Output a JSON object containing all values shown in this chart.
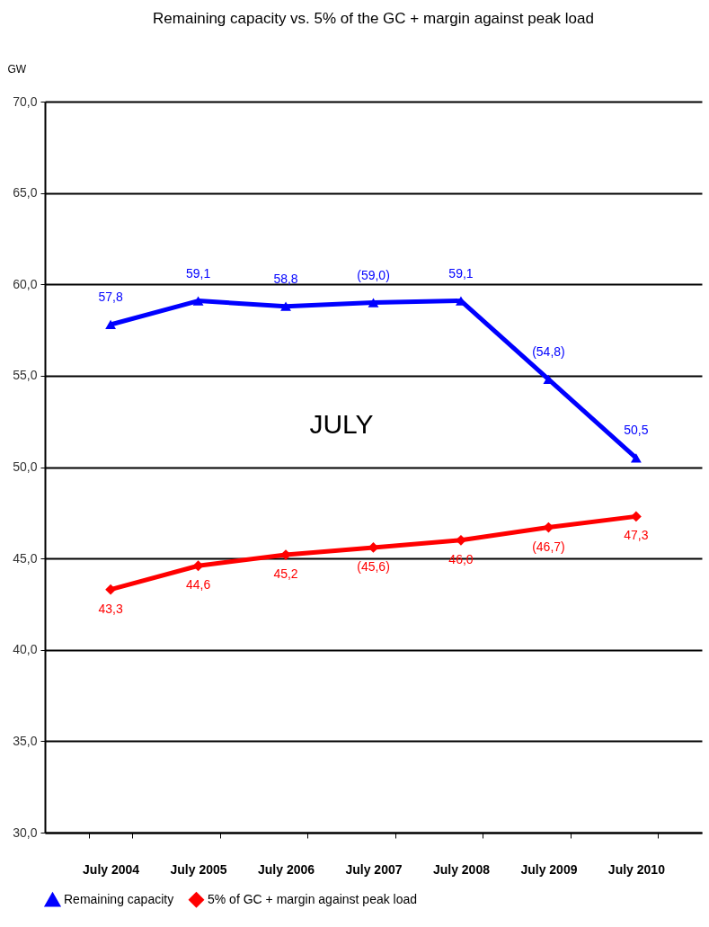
{
  "chart_data": {
    "type": "line",
    "title": "Remaining capacity vs. 5% of the GC + margin against peak load",
    "ylabel": "GW",
    "categories": [
      "July 2004",
      "July 2005",
      "July 2006",
      "July 2007",
      "July 2008",
      "July 2009",
      "July 2010"
    ],
    "series": [
      {
        "name": "Remaining capacity",
        "color": "#0000ff",
        "marker": "triangle",
        "values": [
          57.8,
          59.1,
          58.8,
          59.0,
          59.1,
          54.8,
          50.5
        ],
        "value_labels": [
          "57,8",
          "59,1",
          "58,8",
          "(59,0)",
          "59,1",
          "(54,8)",
          "50,5"
        ]
      },
      {
        "name": "5% of GC + margin against peak load",
        "color": "#ff0000",
        "marker": "diamond",
        "values": [
          43.3,
          44.6,
          45.2,
          45.6,
          46.0,
          46.7,
          47.3
        ],
        "value_labels": [
          "43,3",
          "44,6",
          "45,2",
          "(45,6)",
          "46,0",
          "(46,7)",
          "47,3"
        ]
      }
    ],
    "ylim": [
      30,
      70
    ],
    "yticks": [
      {
        "value": 30,
        "label": "30,0"
      },
      {
        "value": 35,
        "label": "35,0"
      },
      {
        "value": 40,
        "label": "40,0"
      },
      {
        "value": 45,
        "label": "45,0"
      },
      {
        "value": 50,
        "label": "50,0"
      },
      {
        "value": 55,
        "label": "55,0"
      },
      {
        "value": 60,
        "label": "60,0"
      },
      {
        "value": 65,
        "label": "65,0"
      },
      {
        "value": 70,
        "label": "70,0"
      }
    ],
    "grid": "y",
    "legend": "bottom",
    "line_style": "solid",
    "annotations": [
      "JULY"
    ]
  }
}
